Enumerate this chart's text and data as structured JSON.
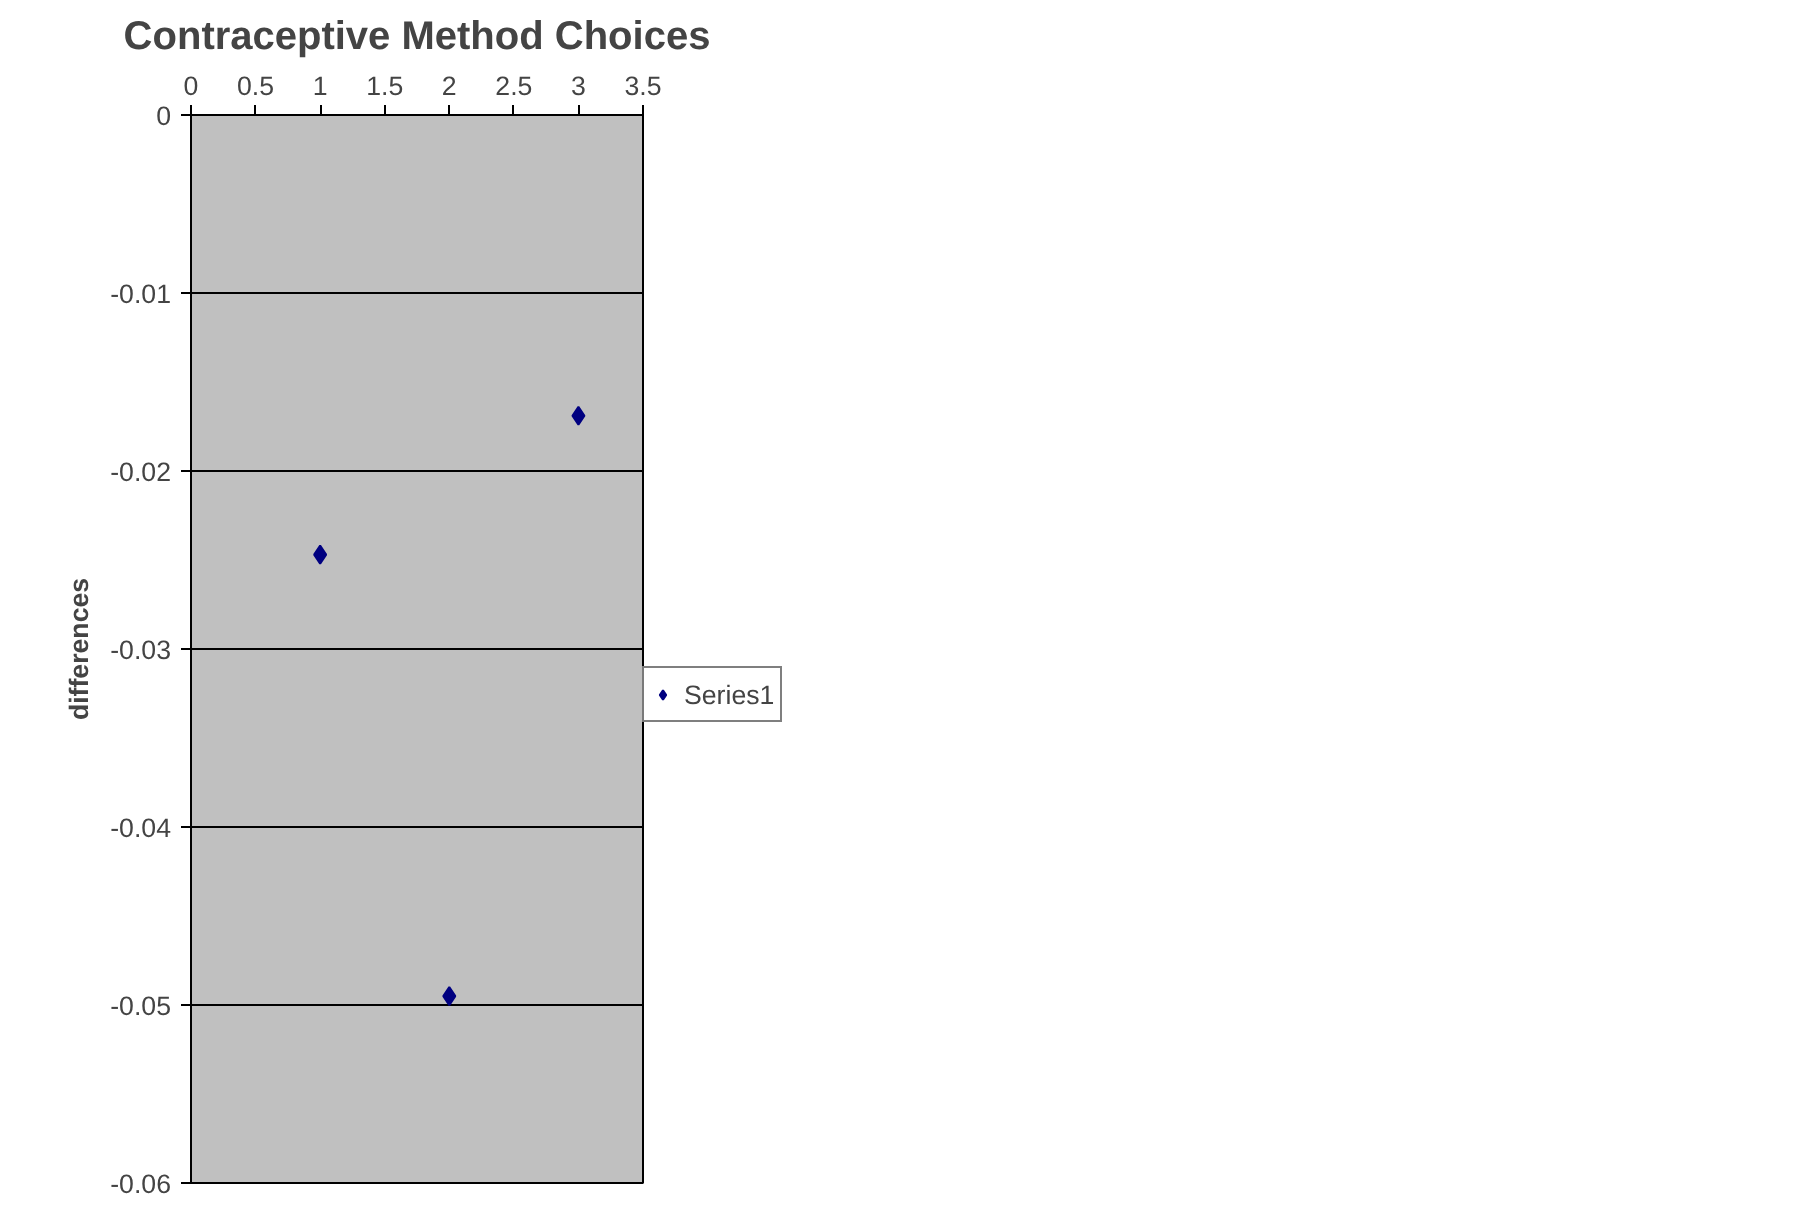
{
  "chart_data": {
    "type": "scatter",
    "title": "Contraceptive Method Choices",
    "ylabel": "differences",
    "x": [
      1,
      2,
      3
    ],
    "series": [
      {
        "name": "Series1",
        "color": "#000080",
        "values": [
          -0.0247,
          -0.0495,
          -0.0169
        ]
      }
    ],
    "xlim": [
      0,
      3.5
    ],
    "xticks": [
      0,
      0.5,
      1,
      1.5,
      2,
      2.5,
      3,
      3.5
    ],
    "ylim": [
      -0.06,
      0
    ],
    "yticks": [
      -0.06,
      -0.05,
      -0.04,
      -0.03,
      -0.02,
      -0.01,
      0
    ],
    "grid": "y",
    "legend": "right",
    "marker": "diamond"
  }
}
